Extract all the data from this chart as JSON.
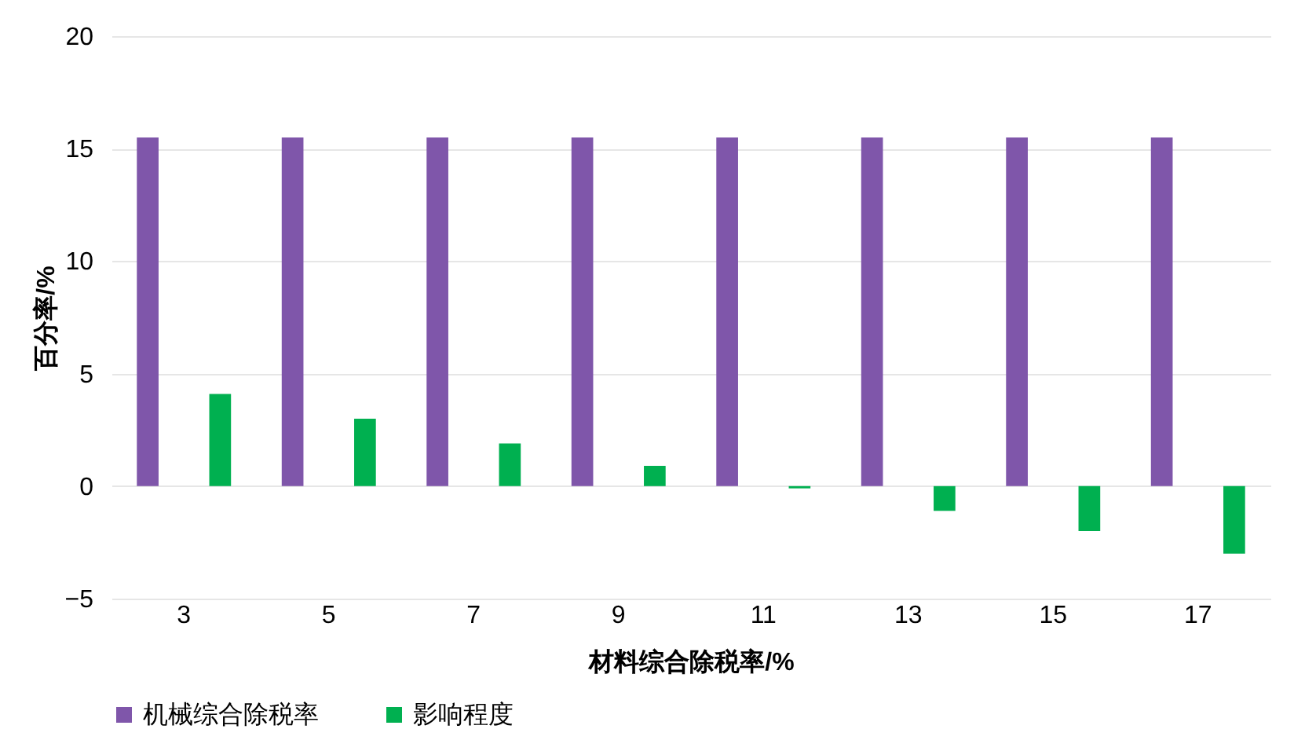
{
  "chart_data": {
    "type": "bar",
    "xlabel": "材料综合除税率/%",
    "ylabel": "百分率/%",
    "categories": [
      "3",
      "5",
      "7",
      "9",
      "11",
      "13",
      "15",
      "17"
    ],
    "series": [
      {
        "name": "机械综合除税率",
        "color": "#7f56aa",
        "values": [
          15.5,
          15.5,
          15.5,
          15.5,
          15.5,
          15.5,
          15.5,
          15.5
        ]
      },
      {
        "name": "影响程度",
        "color": "#00b050",
        "values": [
          4.1,
          3.0,
          1.9,
          0.9,
          -0.1,
          -1.1,
          -2.0,
          -3.0
        ]
      }
    ],
    "ylim": [
      -5,
      20
    ],
    "yticks": [
      -5,
      0,
      5,
      10,
      15,
      20
    ],
    "grid": "y",
    "legend": "bottom"
  }
}
